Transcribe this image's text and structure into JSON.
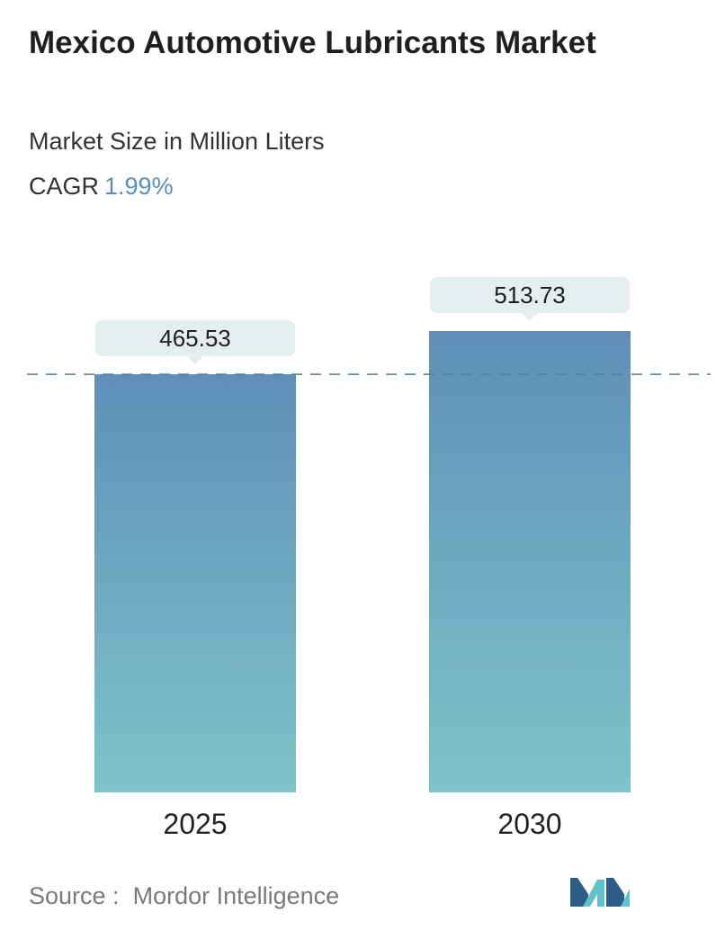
{
  "header": {
    "title": "Mexico Automotive Lubricants Market",
    "subtitle": "Market Size in Million Liters",
    "cagr_label": "CAGR",
    "cagr_value": "1.99%"
  },
  "footer": {
    "source_label": "Source :",
    "source_name": "Mordor Intelligence",
    "logo_icon": "mordor-intelligence-logo-icon"
  },
  "colors": {
    "bar_top": "#5f8fb8",
    "bar_bottom": "#7ec3c9",
    "label_box": "#e4eef1",
    "dashed_line": "#4f7d9e",
    "cagr_value": "#5b8fb5",
    "logo_dark": "#2f5d8a",
    "logo_light": "#5fc3c9"
  },
  "chart_data": {
    "type": "bar",
    "categories": [
      "2025",
      "2030"
    ],
    "values": [
      465.53,
      513.73
    ],
    "value_labels": [
      "465.53",
      "513.73"
    ],
    "ylim": [
      0,
      560
    ],
    "grid": false,
    "reference_line": 465.53
  }
}
